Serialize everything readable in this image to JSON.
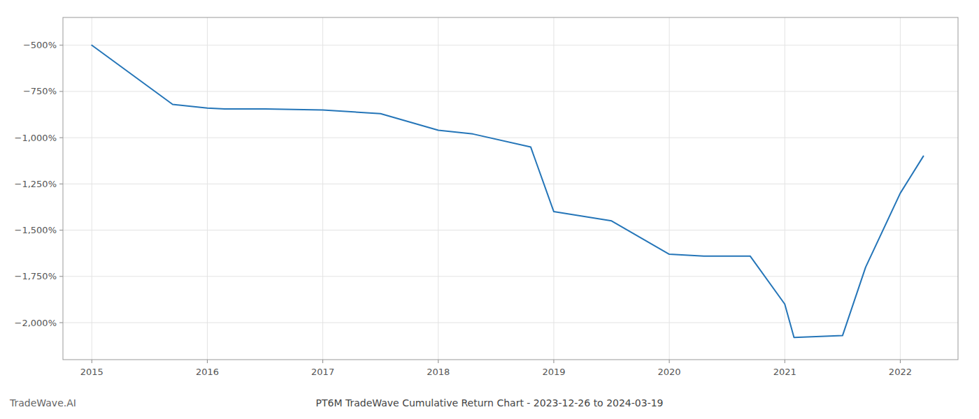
{
  "chart_data": {
    "type": "line",
    "title": "PT6M TradeWave Cumulative Return Chart - 2023-12-26 to 2024-03-19",
    "annotations": [
      "TradeWave.AI"
    ],
    "x": [
      2015.0,
      2015.7,
      2016.0,
      2016.15,
      2016.5,
      2017.0,
      2017.5,
      2018.0,
      2018.3,
      2018.8,
      2019.0,
      2019.5,
      2020.0,
      2020.3,
      2020.7,
      2021.0,
      2021.08,
      2021.5,
      2021.7,
      2022.0,
      2022.2
    ],
    "values": [
      -500,
      -820,
      -840,
      -845,
      -845,
      -850,
      -870,
      -960,
      -980,
      -1050,
      -1400,
      -1450,
      -1630,
      -1640,
      -1640,
      -1900,
      -2080,
      -2070,
      -1700,
      -1300,
      -1100
    ],
    "color": "#2475b8",
    "xlim": [
      2014.75,
      2022.5
    ],
    "ylim": [
      -2200,
      -350
    ],
    "xticks": [
      2015,
      2016,
      2017,
      2018,
      2019,
      2020,
      2021,
      2022
    ],
    "yticks": [
      {
        "value": -500,
        "label": "−500%"
      },
      {
        "value": -750,
        "label": "−750%"
      },
      {
        "value": -1000,
        "label": "−1,000%"
      },
      {
        "value": -1250,
        "label": "−1,250%"
      },
      {
        "value": -1500,
        "label": "−1,500%"
      },
      {
        "value": -1750,
        "label": "−1,750%"
      },
      {
        "value": -2000,
        "label": "−2,000%"
      }
    ],
    "grid": true
  }
}
